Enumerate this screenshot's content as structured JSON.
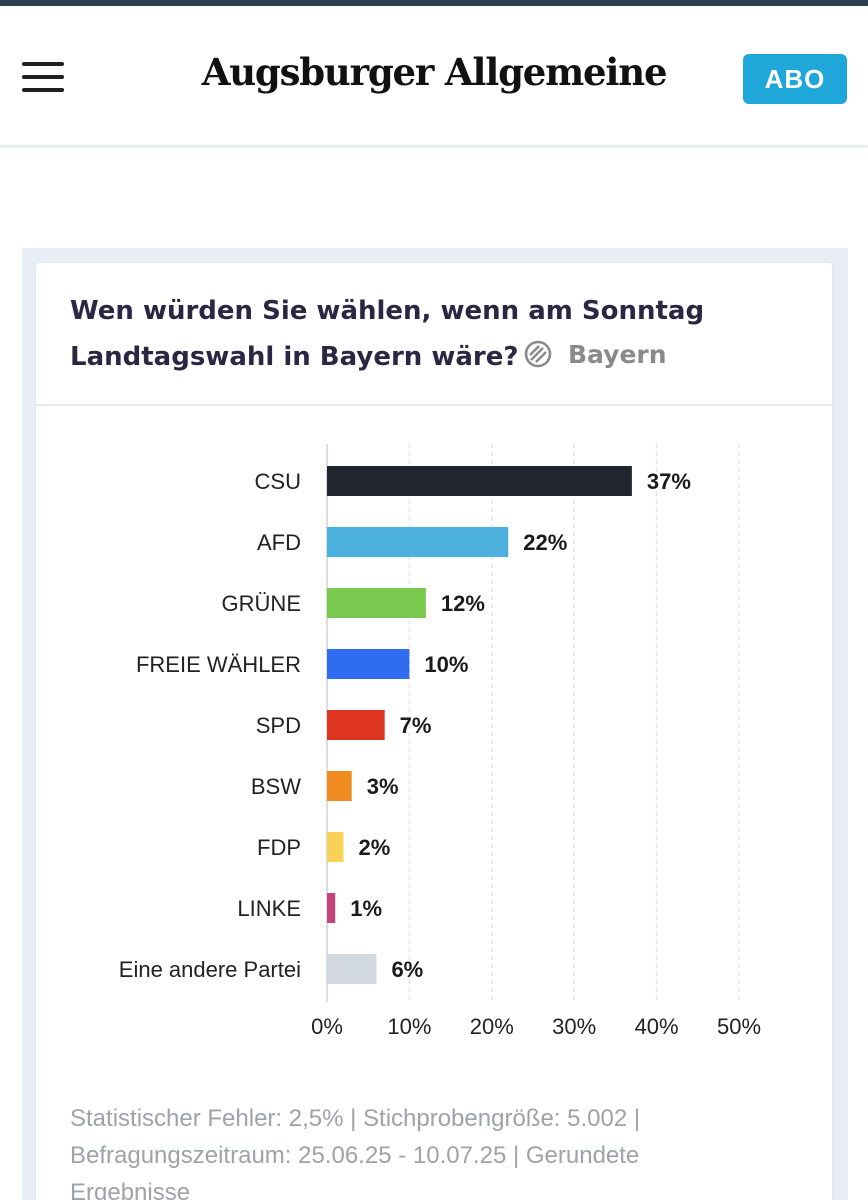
{
  "header": {
    "logo": "Augsburger Allgemeine",
    "abo_label": "ABO"
  },
  "card": {
    "title": "Wen würden Sie wählen, wenn am Sonntag Landtagswahl in Bayern wäre?",
    "region": "Bayern",
    "footnote": "Statistischer Fehler: 2,5% | Stichprobengröße: 5.002 | Befragungszeitraum: 25.06.25 - 10.07.25 | Gerundete Ergebnisse"
  },
  "colors": {
    "CSU": "#22252f",
    "AFD": "#4bb0dc",
    "GRÜNE": "#79c94f",
    "FREIE WÄHLER": "#2f6cf0",
    "SPD": "#dd3520",
    "BSW": "#f08c1f",
    "FDP": "#f7d256",
    "LINKE": "#c4457c",
    "Eine andere Partei": "#d1d8df"
  },
  "chart_data": {
    "type": "bar",
    "orientation": "horizontal",
    "title": "Wen würden Sie wählen, wenn am Sonntag Landtagswahl in Bayern wäre?",
    "categories": [
      "CSU",
      "AFD",
      "GRÜNE",
      "FREIE WÄHLER",
      "SPD",
      "BSW",
      "FDP",
      "LINKE",
      "Eine andere Partei"
    ],
    "values": [
      37,
      22,
      12,
      10,
      7,
      3,
      2,
      1,
      6
    ],
    "value_labels": [
      "37%",
      "22%",
      "12%",
      "10%",
      "7%",
      "3%",
      "2%",
      "1%",
      "6%"
    ],
    "x_ticks": [
      "0%",
      "10%",
      "20%",
      "30%",
      "40%",
      "50%"
    ],
    "xlim": [
      0,
      50
    ],
    "xlabel": "",
    "ylabel": "",
    "grid": true
  }
}
